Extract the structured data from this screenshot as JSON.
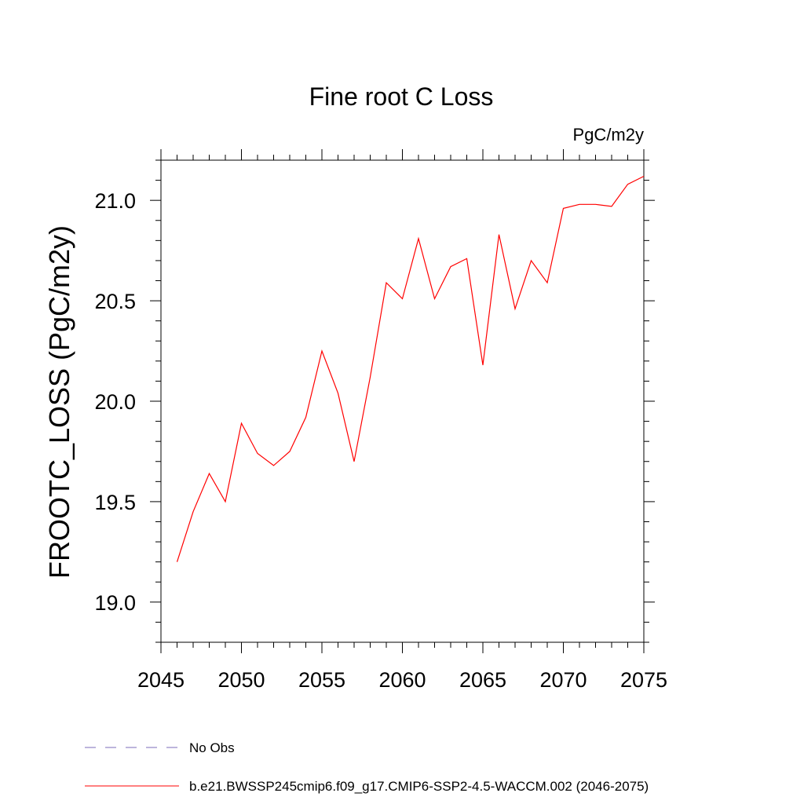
{
  "chart_data": {
    "type": "line",
    "title": "Fine root C Loss",
    "units": "PgC/m2y",
    "ylabel": "FROOTC_LOSS  (PgC/m2y)",
    "xlabel": "",
    "xlim": [
      2045,
      2075
    ],
    "ylim": [
      18.8,
      21.2
    ],
    "x_ticks": [
      2045,
      2050,
      2055,
      2060,
      2065,
      2070,
      2075
    ],
    "x_tick_labels": [
      "2045",
      "2050",
      "2055",
      "2060",
      "2065",
      "2070",
      "2075"
    ],
    "y_ticks": [
      19.0,
      19.5,
      20.0,
      20.5,
      21.0
    ],
    "y_tick_labels": [
      "19.0",
      "19.5",
      "20.0",
      "20.5",
      "21.0"
    ],
    "grid": false,
    "legend_position": "bottom",
    "series": [
      {
        "name": "b.e21.BWSSP245cmip6.f09_g17.CMIP6-SSP2-4.5-WACCM.002 (2046-2075)",
        "color": "#ff0000",
        "style": "solid",
        "x": [
          2046,
          2047,
          2048,
          2049,
          2050,
          2051,
          2052,
          2053,
          2054,
          2055,
          2056,
          2057,
          2058,
          2059,
          2060,
          2061,
          2062,
          2063,
          2064,
          2065,
          2066,
          2067,
          2068,
          2069,
          2070,
          2071,
          2072,
          2073,
          2074,
          2075
        ],
        "y": [
          19.2,
          19.45,
          19.64,
          19.5,
          19.89,
          19.74,
          19.68,
          19.75,
          19.92,
          20.25,
          20.04,
          19.7,
          20.12,
          20.59,
          20.51,
          20.81,
          20.51,
          20.67,
          20.71,
          20.18,
          20.83,
          20.46,
          20.7,
          20.59,
          20.96,
          20.98,
          20.98,
          20.97,
          21.08,
          21.12
        ]
      }
    ],
    "legend": [
      {
        "label": "No Obs",
        "color": "#7b6bb8",
        "style": "dashed"
      },
      {
        "label": "b.e21.BWSSP245cmip6.f09_g17.CMIP6-SSP2-4.5-WACCM.002 (2046-2075)",
        "color": "#ff0000",
        "style": "solid"
      }
    ]
  }
}
